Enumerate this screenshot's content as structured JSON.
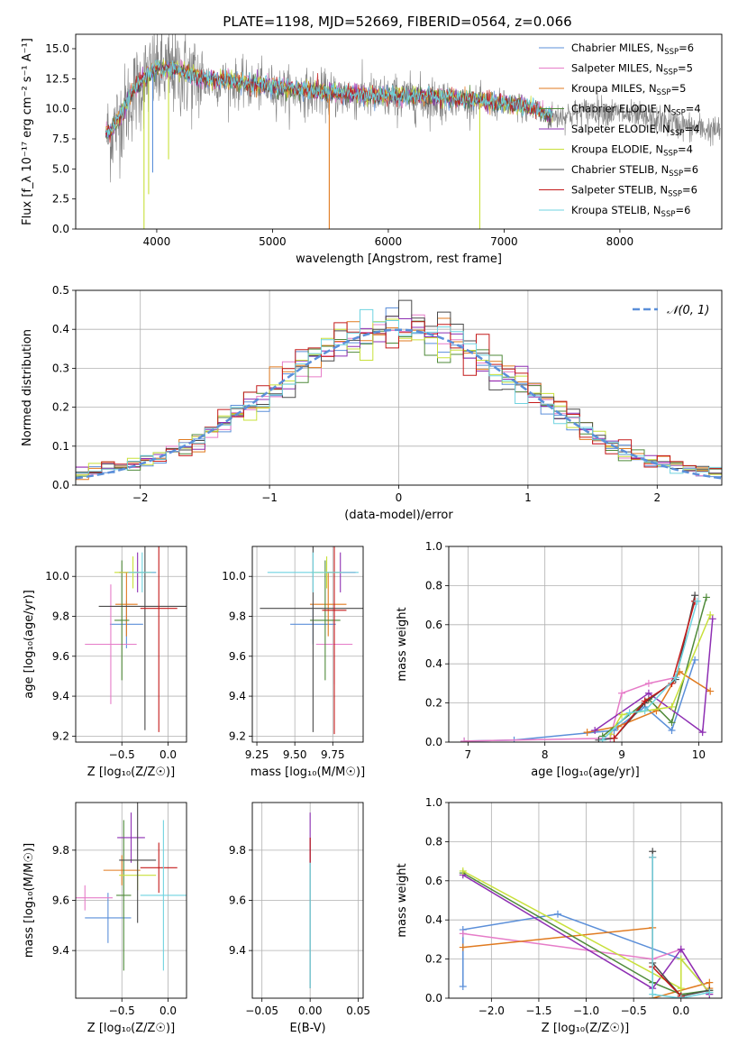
{
  "figure": {
    "title": "PLATE=1198, MJD=52669, FIBERID=0564, z=0.066",
    "colors": {
      "chabrier_miles": "#5b8fd9",
      "salpeter_miles": "#e67cc8",
      "kroupa_miles": "#e07a1f",
      "chabrier_elodie": "#4f8a3a",
      "salpeter_elodie": "#8e2fb3",
      "kroupa_elodie": "#c8e03a",
      "chabrier_stelib": "#4a4a4a",
      "salpeter_stelib": "#c41a1a",
      "kroupa_stelib": "#6fd3e0",
      "data": "#808080",
      "normal": "#5b8fd9",
      "grid": "#b0b0b0"
    }
  },
  "chart_data": [
    {
      "id": "spectrum",
      "type": "line",
      "xlabel": "wavelength [Angstrom, rest frame]",
      "ylabel": "Flux [f_λ 10⁻¹⁷ erg cm⁻² s⁻¹ A⁻¹]",
      "xlim": [
        3300,
        8880
      ],
      "ylim": [
        0,
        16.2
      ],
      "xticks": [
        4000,
        5000,
        6000,
        7000,
        8000
      ],
      "yticks": [
        0.0,
        2.5,
        5.0,
        7.5,
        10.0,
        12.5,
        15.0
      ],
      "grid": false,
      "legend_position": "top-right",
      "legend": [
        {
          "key": "chabrier_miles",
          "label": "Chabrier MILES, N",
          "sub": "SSP",
          "tail": "=6"
        },
        {
          "key": "salpeter_miles",
          "label": "Salpeter MILES, N",
          "sub": "SSP",
          "tail": "=5"
        },
        {
          "key": "kroupa_miles",
          "label": "Kroupa MILES, N",
          "sub": "SSP",
          "tail": "=5"
        },
        {
          "key": "chabrier_elodie",
          "label": "Chabrier ELODIE, N",
          "sub": "SSP",
          "tail": "=4"
        },
        {
          "key": "salpeter_elodie",
          "label": "Salpeter ELODIE, N",
          "sub": "SSP",
          "tail": "=4"
        },
        {
          "key": "kroupa_elodie",
          "label": "Kroupa ELODIE, N",
          "sub": "SSP",
          "tail": "=4"
        },
        {
          "key": "chabrier_stelib",
          "label": "Chabrier STELIB, N",
          "sub": "SSP",
          "tail": "=6"
        },
        {
          "key": "salpeter_stelib",
          "label": "Salpeter STELIB, N",
          "sub": "SSP",
          "tail": "=6"
        },
        {
          "key": "kroupa_stelib",
          "label": "Kroupa STELIB, N",
          "sub": "SSP",
          "tail": "=6"
        }
      ],
      "continuum": [
        [
          3600,
          7.8
        ],
        [
          3700,
          9.5
        ],
        [
          3800,
          11.3
        ],
        [
          3900,
          12.4
        ],
        [
          4000,
          13.2
        ],
        [
          4200,
          13.0
        ],
        [
          4400,
          12.3
        ],
        [
          4600,
          12.2
        ],
        [
          4800,
          11.9
        ],
        [
          5000,
          11.7
        ],
        [
          5200,
          11.4
        ],
        [
          5500,
          11.2
        ],
        [
          5800,
          11.0
        ],
        [
          6100,
          10.9
        ],
        [
          6400,
          10.8
        ],
        [
          6700,
          10.6
        ],
        [
          7000,
          10.3
        ],
        [
          7200,
          10.0
        ],
        [
          7400,
          9.3
        ],
        [
          7600,
          9.6
        ],
        [
          7800,
          9.9
        ],
        [
          8000,
          9.6
        ],
        [
          8200,
          9.2
        ],
        [
          8400,
          8.9
        ],
        [
          8600,
          8.5
        ],
        [
          8800,
          8.2
        ]
      ],
      "model_end": 7420,
      "data_range": [
        3570,
        8870
      ],
      "dips": [
        {
          "x": 3890,
          "y": 0.0,
          "key": "kroupa_elodie"
        },
        {
          "x": 3930,
          "y": 2.9,
          "key": "kroupa_elodie"
        },
        {
          "x": 3965,
          "y": 4.7,
          "key": "chabrier_miles"
        },
        {
          "x": 4102,
          "y": 5.8,
          "key": "kroupa_elodie"
        },
        {
          "x": 5490,
          "y": 0.0,
          "key": "kroupa_miles"
        },
        {
          "x": 6790,
          "y": 0.0,
          "key": "kroupa_elodie"
        }
      ]
    },
    {
      "id": "residuals",
      "type": "histogram",
      "xlabel": "(data-model)/error",
      "ylabel": "Normed distribution",
      "xlim": [
        -2.5,
        2.5
      ],
      "ylim": [
        0,
        0.5
      ],
      "xticks": [
        -2,
        -1,
        0,
        1,
        2
      ],
      "yticks": [
        0.0,
        0.1,
        0.2,
        0.3,
        0.4,
        0.5
      ],
      "grid": true,
      "bin_width": 0.1,
      "legend_position": "top-right",
      "legend_label": "𝒩(0, 1)",
      "series_keys": [
        "chabrier_miles",
        "salpeter_miles",
        "kroupa_miles",
        "chabrier_elodie",
        "salpeter_elodie",
        "kroupa_elodie",
        "chabrier_stelib",
        "salpeter_stelib",
        "kroupa_stelib"
      ]
    },
    {
      "id": "age_Z",
      "type": "errorbar",
      "xlabel": "Z [log₁₀(Z/Z☉)]",
      "ylabel": "age  [log₁₀(age/yr)]",
      "xlim": [
        -1.0,
        0.2
      ],
      "ylim": [
        9.17,
        10.15
      ],
      "xticks": [
        -0.5,
        0.0
      ],
      "yticks": [
        9.2,
        9.4,
        9.6,
        9.8,
        10.0
      ],
      "grid": true,
      "points": [
        {
          "key": "chabrier_miles",
          "x": -0.45,
          "xe": 0.18,
          "y": 9.76,
          "ye": 0.12
        },
        {
          "key": "salpeter_miles",
          "x": -0.62,
          "xe": 0.28,
          "y": 9.66,
          "ye": 0.3
        },
        {
          "key": "kroupa_miles",
          "x": -0.45,
          "xe": 0.12,
          "y": 9.86,
          "ye": 0.16
        },
        {
          "key": "chabrier_elodie",
          "x": -0.5,
          "xe": 0.08,
          "y": 9.78,
          "ye": 0.3
        },
        {
          "key": "salpeter_elodie",
          "x": -0.33,
          "xe": 0.2,
          "y": 10.02,
          "ye": 0.1
        },
        {
          "key": "kroupa_elodie",
          "x": -0.38,
          "xe": 0.2,
          "y": 10.02,
          "ye": 0.08
        },
        {
          "key": "chabrier_stelib",
          "x": -0.25,
          "xe": 0.5,
          "y": 9.85,
          "ye": 0.62
        },
        {
          "key": "salpeter_stelib",
          "x": -0.1,
          "xe": 0.2,
          "y": 9.84,
          "ye": 0.62
        },
        {
          "key": "kroupa_stelib",
          "x": -0.28,
          "xe": 0.15,
          "y": 10.02,
          "ye": 0.1
        }
      ]
    },
    {
      "id": "age_mass",
      "type": "errorbar",
      "xlabel": "mass [log₁₀(M/M☉)]",
      "ylabel": "",
      "xlim": [
        9.22,
        9.95
      ],
      "ylim": [
        9.17,
        10.15
      ],
      "xticks": [
        9.25,
        9.5,
        9.75
      ],
      "yticks": [
        9.2,
        9.4,
        9.6,
        9.8,
        10.0
      ],
      "grid": true,
      "points": [
        {
          "key": "chabrier_miles",
          "x": 9.62,
          "xe": 0.15,
          "y": 9.76,
          "ye": 0.1
        },
        {
          "key": "salpeter_miles",
          "x": 9.76,
          "xe": 0.12,
          "y": 9.66,
          "ye": 0.2
        },
        {
          "key": "kroupa_miles",
          "x": 9.72,
          "xe": 0.12,
          "y": 9.86,
          "ye": 0.16
        },
        {
          "key": "chabrier_elodie",
          "x": 9.7,
          "xe": 0.1,
          "y": 9.78,
          "ye": 0.3
        },
        {
          "key": "salpeter_elodie",
          "x": 9.8,
          "xe": 0.1,
          "y": 10.02,
          "ye": 0.1
        },
        {
          "key": "kroupa_elodie",
          "x": 9.71,
          "xe": 0.1,
          "y": 10.02,
          "ye": 0.08
        },
        {
          "key": "chabrier_stelib",
          "x": 9.62,
          "xe": 0.35,
          "y": 9.84,
          "ye": 0.62
        },
        {
          "key": "salpeter_stelib",
          "x": 9.76,
          "xe": 0.08,
          "y": 9.83,
          "ye": 0.62
        },
        {
          "key": "kroupa_stelib",
          "x": 9.62,
          "xe": 0.3,
          "y": 10.02,
          "ye": 0.1
        }
      ]
    },
    {
      "id": "weight_age",
      "type": "line",
      "xlabel": "age  [log₁₀(age/yr)]",
      "ylabel": "mass weight",
      "xlim": [
        6.75,
        10.3
      ],
      "ylim": [
        0,
        1.0
      ],
      "xticks": [
        7,
        8,
        9,
        10
      ],
      "yticks": [
        0.0,
        0.2,
        0.4,
        0.6,
        0.8,
        1.0
      ],
      "grid": true,
      "series": [
        {
          "key": "chabrier_miles",
          "x": [
            6.95,
            7.6,
            8.9,
            9.3,
            9.65,
            9.95
          ],
          "y": [
            0.005,
            0.01,
            0.06,
            0.18,
            0.06,
            0.42
          ]
        },
        {
          "key": "salpeter_miles",
          "x": [
            6.95,
            8.85,
            9.0,
            9.35,
            9.7
          ],
          "y": [
            0.005,
            0.02,
            0.25,
            0.3,
            0.33
          ]
        },
        {
          "key": "kroupa_miles",
          "x": [
            8.55,
            8.95,
            9.45,
            9.75,
            10.15
          ],
          "y": [
            0.05,
            0.08,
            0.16,
            0.36,
            0.26
          ]
        },
        {
          "key": "chabrier_elodie",
          "x": [
            8.75,
            9.35,
            9.65,
            10.1
          ],
          "y": [
            0.03,
            0.22,
            0.1,
            0.74
          ]
        },
        {
          "key": "salpeter_elodie",
          "x": [
            8.65,
            9.35,
            10.05,
            10.18
          ],
          "y": [
            0.06,
            0.25,
            0.05,
            0.63
          ]
        },
        {
          "key": "kroupa_elodie",
          "x": [
            8.85,
            9.0,
            9.65,
            10.15
          ],
          "y": [
            0.04,
            0.14,
            0.18,
            0.65
          ]
        },
        {
          "key": "chabrier_stelib",
          "x": [
            8.7,
            8.9,
            9.3,
            9.7,
            9.95
          ],
          "y": [
            0.01,
            0.02,
            0.2,
            0.32,
            0.75
          ]
        },
        {
          "key": "salpeter_stelib",
          "x": [
            8.9,
            9.3,
            9.65,
            9.95
          ],
          "y": [
            0.02,
            0.21,
            0.3,
            0.72
          ]
        },
        {
          "key": "kroupa_stelib",
          "x": [
            8.75,
            9.1,
            9.3,
            9.7,
            9.98
          ],
          "y": [
            0.01,
            0.15,
            0.16,
            0.33,
            0.72
          ]
        }
      ]
    },
    {
      "id": "mass_Z",
      "type": "errorbar",
      "xlabel": "Z [log₁₀(Z/Z☉)]",
      "ylabel": "mass [log₁₀(M/M☉)]",
      "xlim": [
        -1.0,
        0.2
      ],
      "ylim": [
        9.21,
        9.99
      ],
      "xticks": [
        -0.5,
        0.0
      ],
      "yticks": [
        9.4,
        9.6,
        9.8
      ],
      "grid": true,
      "points": [
        {
          "key": "chabrier_miles",
          "x": -0.65,
          "xe": 0.25,
          "y": 9.53,
          "ye": 0.1
        },
        {
          "key": "salpeter_miles",
          "x": -0.9,
          "xe": 0.3,
          "y": 9.61,
          "ye": 0.05
        },
        {
          "key": "kroupa_miles",
          "x": -0.5,
          "xe": 0.2,
          "y": 9.72,
          "ye": 0.06
        },
        {
          "key": "chabrier_elodie",
          "x": -0.48,
          "xe": 0.08,
          "y": 9.62,
          "ye": 0.3
        },
        {
          "key": "salpeter_elodie",
          "x": -0.4,
          "xe": 0.15,
          "y": 9.85,
          "ye": 0.1
        },
        {
          "key": "kroupa_elodie",
          "x": -0.33,
          "xe": 0.2,
          "y": 9.7,
          "ye": 0.06
        },
        {
          "key": "chabrier_stelib",
          "x": -0.33,
          "xe": 0.2,
          "y": 9.76,
          "ye": 0.25
        },
        {
          "key": "salpeter_stelib",
          "x": -0.1,
          "xe": 0.2,
          "y": 9.73,
          "ye": 0.1
        },
        {
          "key": "kroupa_stelib",
          "x": -0.05,
          "xe": 0.25,
          "y": 9.62,
          "ye": 0.3
        }
      ]
    },
    {
      "id": "mass_ebv",
      "type": "errorbar",
      "xlabel": "E(B-V)",
      "ylabel": "",
      "xlim": [
        -0.06,
        0.055
      ],
      "ylim": [
        9.21,
        9.99
      ],
      "xticks": [
        -0.05,
        0.0,
        0.05
      ],
      "yticks": [
        9.4,
        9.6,
        9.8
      ],
      "grid": true,
      "points": [
        {
          "key": "chabrier_stelib",
          "x": 0.0,
          "xe": 0.0,
          "y": 9.55,
          "ye": 0.3
        },
        {
          "key": "salpeter_elodie",
          "x": 0.0,
          "xe": 0.0,
          "y": 9.85,
          "ye": 0.1
        },
        {
          "key": "salpeter_stelib",
          "x": 0.0,
          "xe": 0.0,
          "y": 9.8,
          "ye": 0.05
        },
        {
          "key": "kroupa_stelib",
          "x": 0.0,
          "xe": 0.0,
          "y": 9.5,
          "ye": 0.25
        }
      ]
    },
    {
      "id": "weight_Z",
      "type": "line",
      "xlabel": "Z [log₁₀(Z/Z☉)]",
      "ylabel": "mass weight",
      "xlim": [
        -2.45,
        0.43
      ],
      "ylim": [
        0,
        1.0
      ],
      "xticks": [
        -2.0,
        -1.5,
        -1.0,
        -0.5,
        0.0
      ],
      "yticks": [
        0.0,
        0.2,
        0.4,
        0.6,
        0.8,
        1.0
      ],
      "grid": true,
      "series": [
        {
          "key": "chabrier_miles",
          "x": [
            -2.3,
            -2.3,
            -1.3,
            0.0,
            0.3
          ],
          "y": [
            0.06,
            0.35,
            0.43,
            0.2,
            0.03
          ]
        },
        {
          "key": "salpeter_miles",
          "x": [
            -2.3,
            -0.3,
            0.0,
            0.3
          ],
          "y": [
            0.33,
            0.2,
            0.25,
            0.02
          ]
        },
        {
          "key": "kroupa_miles",
          "x": [
            -2.3,
            -0.3,
            -0.3,
            0.3,
            0.3
          ],
          "y": [
            0.26,
            0.36,
            0.0,
            0.08,
            0.05
          ]
        },
        {
          "key": "chabrier_elodie",
          "x": [
            -2.3,
            -0.3,
            0.0,
            0.3
          ],
          "y": [
            0.64,
            0.08,
            0.02,
            0.04
          ]
        },
        {
          "key": "salpeter_elodie",
          "x": [
            -2.3,
            -0.3,
            0.0,
            0.3
          ],
          "y": [
            0.63,
            0.05,
            0.25,
            0.02
          ]
        },
        {
          "key": "kroupa_elodie",
          "x": [
            -2.3,
            0.0,
            0.0,
            0.3
          ],
          "y": [
            0.65,
            0.05,
            0.2,
            0.03
          ]
        },
        {
          "key": "chabrier_stelib",
          "x": [
            -0.3,
            -0.3,
            0.0,
            0.3
          ],
          "y": [
            0.75,
            0.18,
            0.01,
            0.04
          ]
        },
        {
          "key": "salpeter_stelib",
          "x": [
            -0.3,
            -0.3,
            0.0
          ],
          "y": [
            0.72,
            0.16,
            0.01
          ]
        },
        {
          "key": "kroupa_stelib",
          "x": [
            -0.3,
            -0.3,
            0.0,
            0.3
          ],
          "y": [
            0.72,
            0.02,
            0.0,
            0.03
          ]
        }
      ]
    }
  ]
}
